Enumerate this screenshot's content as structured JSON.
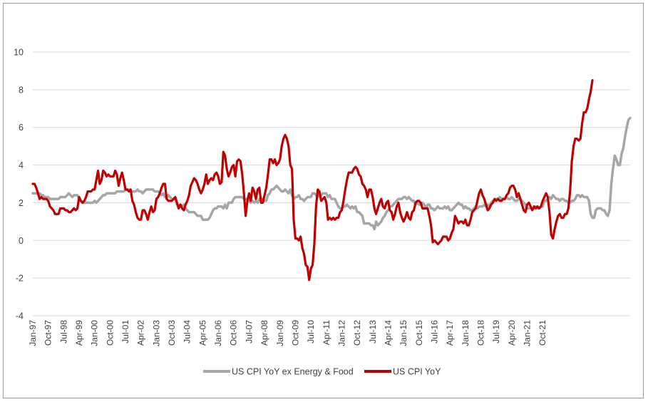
{
  "chart_data": {
    "type": "line",
    "title": "",
    "xlabel": "",
    "ylabel": "",
    "ylim": [
      -4,
      10
    ],
    "yticks": [
      -4,
      -2,
      0,
      2,
      4,
      6,
      8,
      10
    ],
    "x_start": "Jan-97",
    "x_tick_labels": [
      "Jan-97",
      "Oct-97",
      "Jul-98",
      "Apr-99",
      "Jan-00",
      "Oct-00",
      "Jul-01",
      "Apr-02",
      "Jan-03",
      "Oct-03",
      "Jul-04",
      "Apr-05",
      "Jan-06",
      "Oct-06",
      "Jul-07",
      "Apr-08",
      "Jan-09",
      "Oct-09",
      "Jul-10",
      "Apr-11",
      "Jan-12",
      "Oct-12",
      "Jul-13",
      "Apr-14",
      "Jan-15",
      "Oct-15",
      "Jul-16",
      "Apr-17",
      "Jan-18",
      "Oct-18",
      "Jul-19",
      "Apr-20",
      "Jan-21",
      "Oct-21"
    ],
    "grid": "horizontal",
    "legend_position": "bottom",
    "series": [
      {
        "name": "US CPI YoY ex Energy & Food",
        "color": "#a6a6a6",
        "values": [
          2.5,
          2.5,
          2.5,
          2.5,
          2.5,
          2.4,
          2.4,
          2.3,
          2.3,
          2.3,
          2.2,
          2.2,
          2.2,
          2.2,
          2.2,
          2.2,
          2.3,
          2.3,
          2.3,
          2.3,
          2.4,
          2.5,
          2.4,
          2.3,
          2.4,
          2.4,
          2.4,
          2.2,
          2.1,
          2.0,
          2.0,
          2.0,
          2.0,
          2.0,
          2.0,
          2.0,
          2.1,
          2.0,
          2.1,
          2.2,
          2.3,
          2.4,
          2.4,
          2.5,
          2.5,
          2.5,
          2.5,
          2.5,
          2.5,
          2.6,
          2.6,
          2.6,
          2.6,
          2.6,
          2.7,
          2.7,
          2.7,
          2.6,
          2.6,
          2.6,
          2.6,
          2.7,
          2.6,
          2.6,
          2.5,
          2.6,
          2.7,
          2.7,
          2.7,
          2.7,
          2.7,
          2.6,
          2.6,
          2.6,
          2.5,
          2.4,
          2.5,
          2.3,
          2.3,
          2.4,
          2.3,
          2.2,
          2.2,
          2.2,
          1.9,
          1.8,
          1.9,
          1.8,
          1.9,
          1.7,
          1.6,
          1.5,
          1.5,
          1.5,
          1.5,
          1.4,
          1.3,
          1.3,
          1.3,
          1.1,
          1.1,
          1.1,
          1.1,
          1.2,
          1.4,
          1.6,
          1.7,
          1.7,
          1.8,
          1.8,
          1.8,
          1.7,
          1.9,
          1.7,
          2.0,
          2.0,
          2.0,
          2.2,
          2.3,
          2.3,
          2.3,
          2.3,
          2.3,
          2.2,
          2.2,
          2.2,
          2.1,
          2.0,
          2.1,
          2.0,
          2.1,
          2.0,
          2.2,
          2.2,
          2.2,
          2.1,
          2.1,
          2.4,
          2.5,
          2.7,
          2.7,
          2.8,
          2.9,
          2.8,
          2.7,
          2.6,
          2.6,
          2.7,
          2.6,
          2.5,
          2.7,
          2.4,
          2.2,
          2.3,
          2.3,
          2.4,
          2.2,
          2.2,
          2.1,
          2.2,
          2.3,
          2.3,
          2.3,
          2.5,
          2.5,
          2.4,
          2.3,
          2.4,
          2.4,
          2.5,
          2.5,
          2.5,
          2.3,
          2.4,
          2.2,
          2.2,
          2.2,
          2.0,
          1.8,
          1.7,
          1.7,
          1.8,
          1.8,
          1.9,
          1.8,
          1.7,
          1.8,
          1.7,
          1.8,
          1.5,
          1.5,
          1.4,
          1.3,
          0.9,
          0.9,
          0.9,
          0.9,
          0.8,
          0.8,
          0.6,
          1.0,
          0.8,
          0.9,
          1.0,
          1.2,
          1.3,
          1.5,
          1.6,
          1.8,
          1.8,
          1.9,
          2.0,
          2.1,
          2.2,
          2.2,
          2.2,
          2.3,
          2.3,
          2.2,
          2.3,
          2.2,
          2.1,
          2.1,
          1.9,
          2.0,
          1.9,
          1.9,
          2.0,
          1.9,
          1.7,
          1.9,
          1.9,
          1.7,
          1.7,
          1.6,
          1.7,
          1.8,
          1.7,
          1.7,
          1.7,
          1.8,
          1.7,
          1.8,
          1.6,
          1.6,
          1.7,
          1.8,
          1.9,
          2.0,
          1.9,
          1.9,
          1.7,
          1.8,
          1.7,
          1.7,
          1.6,
          1.6,
          1.7,
          1.8,
          1.7,
          1.8,
          1.8,
          1.8,
          1.9,
          1.8,
          1.9,
          1.8,
          2.0,
          2.1,
          2.1,
          2.2,
          2.2,
          2.3,
          2.2,
          2.2,
          2.2,
          2.3,
          2.2,
          2.2,
          2.3,
          2.2,
          2.1,
          2.1,
          2.2,
          2.2,
          2.1,
          2.0,
          1.9,
          1.7,
          1.7,
          1.7,
          1.7,
          1.7,
          1.8,
          1.7,
          1.7,
          1.8,
          1.8,
          2.1,
          2.1,
          2.2,
          2.3,
          2.2,
          2.4,
          2.3,
          2.2,
          2.2,
          2.1,
          2.2,
          2.2,
          2.1,
          2.1,
          2.0,
          2.0,
          2.1,
          2.1,
          2.2,
          2.4,
          2.4,
          2.3,
          2.4,
          2.3,
          2.3,
          2.3,
          2.1,
          1.4,
          1.2,
          1.2,
          1.6,
          1.7,
          1.7,
          1.7,
          1.6,
          1.6,
          1.4,
          1.3,
          1.6,
          3.0,
          3.8,
          4.5,
          4.3,
          4.0,
          4.0,
          4.6,
          4.9,
          5.5,
          6.0,
          6.4,
          6.5
        ]
      },
      {
        "name": "US CPI YoY",
        "color": "#c00000",
        "values": [
          3.0,
          3.0,
          2.8,
          2.5,
          2.2,
          2.3,
          2.2,
          2.2,
          2.2,
          2.1,
          1.8,
          1.7,
          1.6,
          1.4,
          1.4,
          1.4,
          1.7,
          1.7,
          1.7,
          1.6,
          1.6,
          1.5,
          1.5,
          1.6,
          1.7,
          1.6,
          1.7,
          2.3,
          2.1,
          2.0,
          2.1,
          2.3,
          2.6,
          2.6,
          2.6,
          2.7,
          2.7,
          3.2,
          3.7,
          3.0,
          3.2,
          3.7,
          3.6,
          3.4,
          3.5,
          3.4,
          3.4,
          3.4,
          3.7,
          3.5,
          2.9,
          3.3,
          3.6,
          3.2,
          2.7,
          2.7,
          2.6,
          2.7,
          2.1,
          1.9,
          1.5,
          1.2,
          1.1,
          1.1,
          1.6,
          1.6,
          1.4,
          1.1,
          1.5,
          1.8,
          1.5,
          1.6,
          2.2,
          2.3,
          2.5,
          2.8,
          3.0,
          3.0,
          2.2,
          2.1,
          2.1,
          2.1,
          2.2,
          2.3,
          2.0,
          1.7,
          1.9,
          1.7,
          1.6,
          1.9,
          2.1,
          2.4,
          2.9,
          3.1,
          3.3,
          3.2,
          3.0,
          2.7,
          2.5,
          2.7,
          3.0,
          3.5,
          3.0,
          3.2,
          3.3,
          3.2,
          3.5,
          3.6,
          3.4,
          3.0,
          3.1,
          4.7,
          4.5,
          3.8,
          3.4,
          3.6,
          3.9,
          4.0,
          3.4,
          4.2,
          4.3,
          4.2,
          3.5,
          2.5,
          1.3,
          2.1,
          2.5,
          2.1,
          2.8,
          2.6,
          2.2,
          2.7,
          2.8,
          2.0,
          2.0,
          2.4,
          2.8,
          3.5,
          4.3,
          4.3,
          4.1,
          4.3,
          4.0,
          4.1,
          4.3,
          5.0,
          5.4,
          5.6,
          5.4,
          5.0,
          4.0,
          3.8,
          1.1,
          0.1,
          0.1,
          0.0,
          0.2,
          -0.4,
          -0.7,
          -1.3,
          -1.4,
          -2.1,
          -1.5,
          -1.3,
          -0.2,
          1.8,
          2.7,
          2.6,
          2.1,
          2.2,
          2.3,
          2.0,
          1.1,
          1.2,
          1.1,
          1.2,
          1.1,
          1.2,
          1.2,
          1.5,
          1.6,
          2.1,
          2.7,
          3.2,
          3.6,
          3.6,
          3.6,
          3.8,
          3.9,
          3.8,
          3.5,
          3.4,
          3.0,
          2.9,
          2.7,
          2.3,
          2.7,
          2.7,
          2.3,
          1.7,
          1.4,
          1.7,
          2.0,
          2.2,
          1.8,
          1.7,
          2.0,
          2.1,
          1.6,
          1.5,
          1.1,
          1.4,
          1.8,
          2.0,
          1.5,
          1.2,
          1.0,
          1.2,
          1.5,
          1.2,
          1.1,
          1.5,
          1.6,
          2.0,
          2.1,
          2.1,
          2.0,
          1.7,
          1.7,
          1.7,
          1.7,
          1.3,
          0.8,
          -0.1,
          0.0,
          -0.1,
          -0.2,
          -0.1,
          0.0,
          0.2,
          0.2,
          0.2,
          0.0,
          0.1,
          0.4,
          0.6,
          1.3,
          1.1,
          0.9,
          1.0,
          1.0,
          0.9,
          1.1,
          0.8,
          0.8,
          1.1,
          1.5,
          1.6,
          1.7,
          2.1,
          2.5,
          2.7,
          2.4,
          2.2,
          1.9,
          1.6,
          1.7,
          1.9,
          2.0,
          2.2,
          2.1,
          2.2,
          2.1,
          2.1,
          2.2,
          2.2,
          2.4,
          2.5,
          2.8,
          2.9,
          2.9,
          2.7,
          2.3,
          2.5,
          2.2,
          1.9,
          1.6,
          1.5,
          1.9,
          2.0,
          1.8,
          1.6,
          1.8,
          1.7,
          1.8,
          1.7,
          1.8,
          2.1,
          2.3,
          2.5,
          2.3,
          1.5,
          0.3,
          0.1,
          0.6,
          1.0,
          1.3,
          1.4,
          1.2,
          1.2,
          1.4,
          1.4,
          1.7,
          2.6,
          4.2,
          5.0,
          5.4,
          5.4,
          5.3,
          5.4,
          6.2,
          6.8,
          6.8,
          7.0,
          7.5,
          7.9,
          8.5
        ]
      }
    ]
  }
}
